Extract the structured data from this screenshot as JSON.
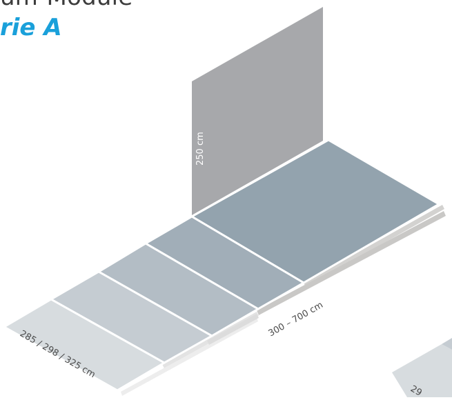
{
  "header": {
    "title_line1": "um-Module",
    "title_line2": "rie A"
  },
  "dimensions": {
    "wall_height": "250 cm",
    "floor_length": "300 – 700 cm",
    "floor_depth": "285 / 298 / 325 cm",
    "second_module_partial": "29"
  },
  "colors": {
    "wall": "#a7a8ab",
    "floor_main": "#93a3ae",
    "accent_title": "#1aa0da"
  }
}
